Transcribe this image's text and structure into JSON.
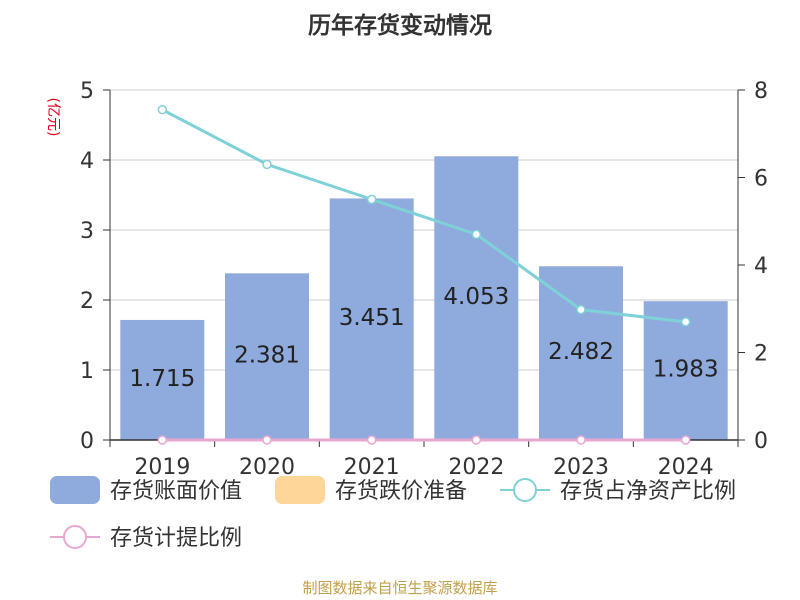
{
  "chart_data": {
    "type": "bar",
    "title": "历年存货变动情况",
    "left_unit": "(亿元)",
    "categories": [
      "2019",
      "2020",
      "2021",
      "2022",
      "2023",
      "2024"
    ],
    "series": [
      {
        "name": "存货账面价值",
        "type": "bar",
        "axis": "left",
        "values": [
          1.715,
          2.381,
          3.451,
          4.053,
          2.482,
          1.983
        ],
        "labels": [
          "1.715",
          "2.381",
          "3.451",
          "4.053",
          "2.482",
          "1.983"
        ]
      },
      {
        "name": "存货跌价准备",
        "type": "bar",
        "axis": "left",
        "values": [
          0,
          0,
          0,
          0,
          0,
          0
        ]
      },
      {
        "name": "存货占净资产比例",
        "type": "line",
        "axis": "right",
        "values": [
          7.55,
          6.3,
          5.5,
          4.7,
          2.98,
          2.7
        ]
      },
      {
        "name": "存货计提比例",
        "type": "line",
        "axis": "right",
        "values": [
          0,
          0,
          0,
          0,
          0,
          0
        ]
      }
    ],
    "y_left": {
      "range": [
        0,
        5
      ],
      "ticks": [
        "0",
        "1",
        "2",
        "3",
        "4",
        "5"
      ]
    },
    "y_right": {
      "range": [
        0,
        8
      ],
      "ticks": [
        "0",
        "2",
        "4",
        "6",
        "8"
      ]
    },
    "grid": true,
    "legend_position": "bottom",
    "colors": {
      "bar_value": "#8faadc",
      "bar_impairment": "#ffd699",
      "line_ratio_net_assets": "#7fd1d8",
      "line_provision_ratio": "#e8a7d2",
      "unit_label": "#e0001b",
      "title": "#333333",
      "source": "#c2a04b"
    }
  },
  "source_text": "制图数据来自恒生聚源数据库"
}
